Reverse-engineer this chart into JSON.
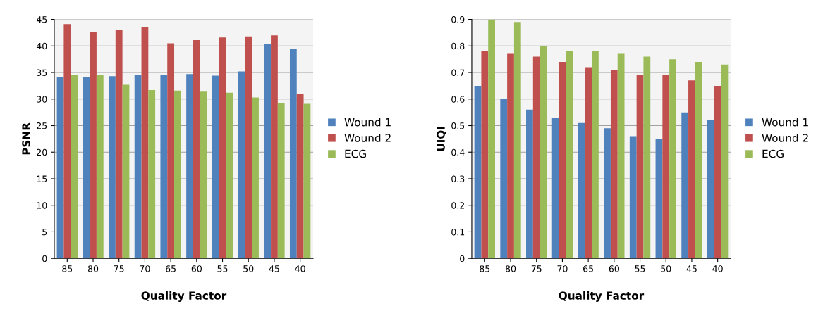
{
  "chart_data": [
    {
      "type": "bar",
      "xlabel": "Quality Factor",
      "ylabel": "PSNR",
      "categories": [
        "85",
        "80",
        "75",
        "70",
        "65",
        "60",
        "55",
        "50",
        "45",
        "40"
      ],
      "series": [
        {
          "name": "Wound 1",
          "color": "#4f81bd",
          "values": [
            34.1,
            34.1,
            34.3,
            34.5,
            34.5,
            34.7,
            34.4,
            35.2,
            40.3,
            39.4
          ]
        },
        {
          "name": "Wound 2",
          "color": "#c0504d",
          "values": [
            44.1,
            42.7,
            43.1,
            43.5,
            40.5,
            41.1,
            41.6,
            41.8,
            42.0,
            31.0
          ]
        },
        {
          "name": "ECG",
          "color": "#9bbb59",
          "values": [
            34.6,
            34.5,
            32.7,
            31.7,
            31.6,
            31.4,
            31.2,
            30.3,
            29.3,
            29.1
          ]
        }
      ],
      "ylim": [
        0,
        45
      ],
      "yticks": [
        0,
        5,
        10,
        15,
        20,
        25,
        30,
        35,
        40,
        45
      ],
      "grid": "y",
      "legend": "right"
    },
    {
      "type": "bar",
      "xlabel": "Quality Factor",
      "ylabel": "UIQI",
      "categories": [
        "85",
        "80",
        "75",
        "70",
        "65",
        "60",
        "55",
        "50",
        "45",
        "40"
      ],
      "series": [
        {
          "name": "Wound 1",
          "color": "#4f81bd",
          "values": [
            0.65,
            0.6,
            0.56,
            0.53,
            0.51,
            0.49,
            0.46,
            0.45,
            0.55,
            0.52
          ]
        },
        {
          "name": "Wound 2",
          "color": "#c0504d",
          "values": [
            0.78,
            0.77,
            0.76,
            0.74,
            0.72,
            0.71,
            0.69,
            0.69,
            0.67,
            0.65
          ]
        },
        {
          "name": "ECG",
          "color": "#9bbb59",
          "values": [
            0.9,
            0.89,
            0.8,
            0.78,
            0.78,
            0.77,
            0.76,
            0.75,
            0.74,
            0.73
          ]
        }
      ],
      "ylim": [
        0,
        0.9
      ],
      "yticks": [
        0,
        0.1,
        0.2,
        0.3,
        0.4,
        0.5,
        0.6,
        0.7,
        0.8,
        0.9
      ],
      "grid": "y",
      "legend": "right"
    }
  ]
}
